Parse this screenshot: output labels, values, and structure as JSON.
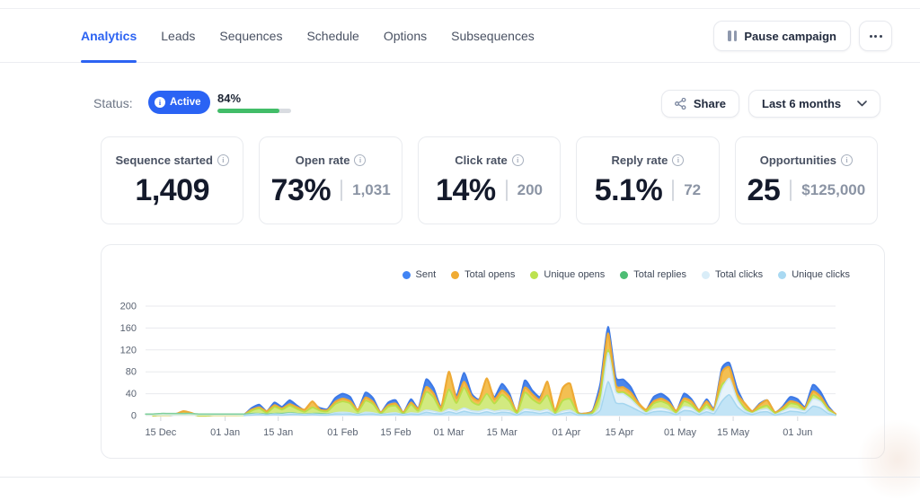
{
  "tabs": {
    "items": [
      {
        "label": "Analytics",
        "active": true
      },
      {
        "label": "Leads",
        "active": false
      },
      {
        "label": "Sequences",
        "active": false
      },
      {
        "label": "Schedule",
        "active": false
      },
      {
        "label": "Options",
        "active": false
      },
      {
        "label": "Subsequences",
        "active": false
      }
    ]
  },
  "header": {
    "pause_label": "Pause campaign"
  },
  "status": {
    "label": "Status:",
    "badge": "Active",
    "progress_text": "84%",
    "progress_value": 84,
    "progress_color": "#42bd68"
  },
  "toolbar": {
    "share_label": "Share",
    "range_label": "Last 6 months"
  },
  "stats": [
    {
      "title": "Sequence started",
      "value": "1,409",
      "secondary": null
    },
    {
      "title": "Open rate",
      "value": "73%",
      "secondary": "1,031"
    },
    {
      "title": "Click rate",
      "value": "14%",
      "secondary": "200"
    },
    {
      "title": "Reply rate",
      "value": "5.1%",
      "secondary": "72"
    },
    {
      "title": "Opportunities",
      "value": "25",
      "secondary": "$125,000"
    }
  ],
  "chart_data": {
    "type": "area",
    "note": "values sampled every 2 days starting 11 Dec; day index = 2*i",
    "ylim": [
      0,
      200
    ],
    "yticks": [
      0,
      40,
      80,
      120,
      160,
      200
    ],
    "x_tick_days": [
      4,
      21,
      35,
      52,
      66,
      80,
      94,
      111,
      125,
      141,
      155,
      172
    ],
    "x_tick_labels": [
      "15 Dec",
      "01 Jan",
      "15 Jan",
      "01 Feb",
      "15 Feb",
      "01 Mar",
      "15 Mar",
      "01 Apr",
      "15 Apr",
      "01 May",
      "15 May",
      "01 Jun"
    ],
    "x_max_day": 182,
    "series": [
      {
        "name": "Sent",
        "fill": "#4a86ec",
        "stroke": "#3d79e6",
        "sw": 2,
        "values": [
          0,
          0,
          1,
          1,
          2,
          6,
          4,
          0,
          0,
          1,
          1,
          1,
          1,
          2,
          14,
          20,
          8,
          24,
          16,
          28,
          18,
          10,
          22,
          14,
          12,
          32,
          40,
          34,
          10,
          42,
          32,
          6,
          24,
          28,
          6,
          30,
          14,
          66,
          50,
          16,
          74,
          36,
          78,
          40,
          30,
          62,
          34,
          58,
          40,
          6,
          64,
          46,
          34,
          56,
          8,
          42,
          44,
          6,
          4,
          10,
          60,
          162,
          70,
          66,
          52,
          24,
          10,
          34,
          40,
          30,
          8,
          40,
          30,
          10,
          30,
          14,
          86,
          96,
          50,
          22,
          8,
          22,
          28,
          6,
          16,
          34,
          30,
          16,
          56,
          44,
          18,
          2
        ]
      },
      {
        "name": "Total opens",
        "fill": "#f3bf52",
        "stroke": "#eeaa35",
        "sw": 2.2,
        "values": [
          0,
          0,
          1,
          1,
          3,
          8,
          5,
          0,
          0,
          1,
          1,
          1,
          1,
          2,
          11,
          15,
          8,
          19,
          13,
          21,
          15,
          11,
          26,
          11,
          10,
          25,
          31,
          26,
          11,
          33,
          25,
          6,
          19,
          22,
          6,
          24,
          13,
          52,
          40,
          15,
          80,
          32,
          62,
          35,
          28,
          68,
          30,
          46,
          34,
          7,
          51,
          39,
          29,
          62,
          9,
          50,
          58,
          6,
          4,
          8,
          48,
          150,
          56,
          52,
          42,
          23,
          11,
          26,
          31,
          24,
          9,
          31,
          26,
          10,
          26,
          12,
          78,
          88,
          40,
          23,
          8,
          20,
          28,
          6,
          14,
          26,
          23,
          14,
          44,
          35,
          14,
          3
        ]
      },
      {
        "name": "Unique opens",
        "fill": "#d2ea80",
        "stroke": "#b9df48",
        "sw": 1.8,
        "values": [
          0,
          0,
          1,
          1,
          2,
          4,
          3,
          0,
          0,
          1,
          1,
          1,
          1,
          1,
          9,
          13,
          5,
          16,
          11,
          18,
          12,
          7,
          15,
          9,
          8,
          21,
          26,
          22,
          7,
          27,
          21,
          4,
          16,
          18,
          4,
          20,
          9,
          43,
          33,
          10,
          48,
          23,
          51,
          26,
          20,
          40,
          22,
          38,
          26,
          4,
          42,
          30,
          22,
          37,
          5,
          27,
          30,
          4,
          2,
          6,
          39,
          120,
          46,
          43,
          34,
          16,
          7,
          22,
          26,
          20,
          5,
          26,
          20,
          6,
          20,
          8,
          56,
          62,
          33,
          14,
          5,
          14,
          18,
          4,
          10,
          22,
          20,
          10,
          37,
          29,
          12,
          1
        ]
      },
      {
        "name": "Total replies",
        "fill": "#d8eedd",
        "stroke": "#7fcf9c",
        "sw": 1.5,
        "values": [
          3,
          3,
          4,
          4,
          4,
          4,
          4,
          3,
          3,
          3,
          3,
          3,
          3,
          3,
          4,
          4,
          3,
          4,
          4,
          5,
          4,
          3,
          4,
          4,
          3,
          5,
          5,
          4,
          3,
          5,
          4,
          3,
          4,
          4,
          3,
          4,
          4,
          6,
          5,
          4,
          6,
          5,
          6,
          5,
          5,
          6,
          5,
          5,
          5,
          3,
          5,
          5,
          4,
          5,
          3,
          4,
          5,
          3,
          2,
          3,
          5,
          8,
          6,
          5,
          5,
          4,
          3,
          4,
          4,
          4,
          3,
          4,
          4,
          3,
          4,
          3,
          6,
          7,
          5,
          4,
          3,
          4,
          4,
          2,
          3,
          4,
          4,
          3,
          5,
          4,
          3,
          1
        ]
      },
      {
        "name": "Total clicks",
        "fill": "#e7f3fa",
        "stroke": "#c9e5f3",
        "sw": 1.5,
        "values": [
          0,
          0,
          0,
          0,
          0,
          0,
          0,
          0,
          0,
          0,
          0,
          0,
          0,
          0,
          2,
          3,
          1,
          3,
          2,
          4,
          3,
          2,
          3,
          2,
          2,
          5,
          6,
          5,
          2,
          6,
          5,
          2,
          4,
          5,
          2,
          5,
          4,
          10,
          8,
          5,
          12,
          8,
          14,
          9,
          8,
          12,
          8,
          10,
          9,
          2,
          12,
          10,
          8,
          11,
          2,
          8,
          10,
          2,
          1,
          2,
          20,
          115,
          44,
          40,
          30,
          16,
          5,
          12,
          14,
          10,
          3,
          16,
          14,
          4,
          12,
          8,
          48,
          68,
          30,
          10,
          4,
          10,
          12,
          2,
          8,
          14,
          12,
          9,
          30,
          26,
          8,
          1
        ]
      },
      {
        "name": "Unique clicks",
        "fill": "#c2e4f6",
        "stroke": "#a5d6ef",
        "sw": 1.5,
        "values": [
          0,
          0,
          0,
          0,
          0,
          0,
          0,
          0,
          0,
          0,
          0,
          0,
          0,
          0,
          1,
          2,
          1,
          2,
          1,
          2,
          2,
          1,
          2,
          1,
          1,
          3,
          3,
          3,
          1,
          3,
          3,
          1,
          2,
          3,
          1,
          3,
          2,
          6,
          4,
          3,
          7,
          4,
          8,
          5,
          4,
          7,
          4,
          6,
          5,
          1,
          7,
          6,
          4,
          6,
          1,
          4,
          6,
          1,
          1,
          1,
          11,
          62,
          24,
          22,
          16,
          9,
          3,
          7,
          8,
          6,
          2,
          9,
          8,
          2,
          7,
          4,
          26,
          38,
          17,
          6,
          2,
          6,
          7,
          1,
          4,
          8,
          7,
          5,
          17,
          14,
          4,
          1
        ]
      }
    ],
    "legend": [
      {
        "name": "Sent",
        "color": "#4184f4"
      },
      {
        "name": "Total opens",
        "color": "#f0ab33"
      },
      {
        "name": "Unique opens",
        "color": "#bce24f"
      },
      {
        "name": "Total replies",
        "color": "#4dbd74"
      },
      {
        "name": "Total clicks",
        "color": "#d9edf8"
      },
      {
        "name": "Unique clicks",
        "color": "#a9d9f2"
      }
    ],
    "grid": true,
    "legend_position": "top-right"
  }
}
